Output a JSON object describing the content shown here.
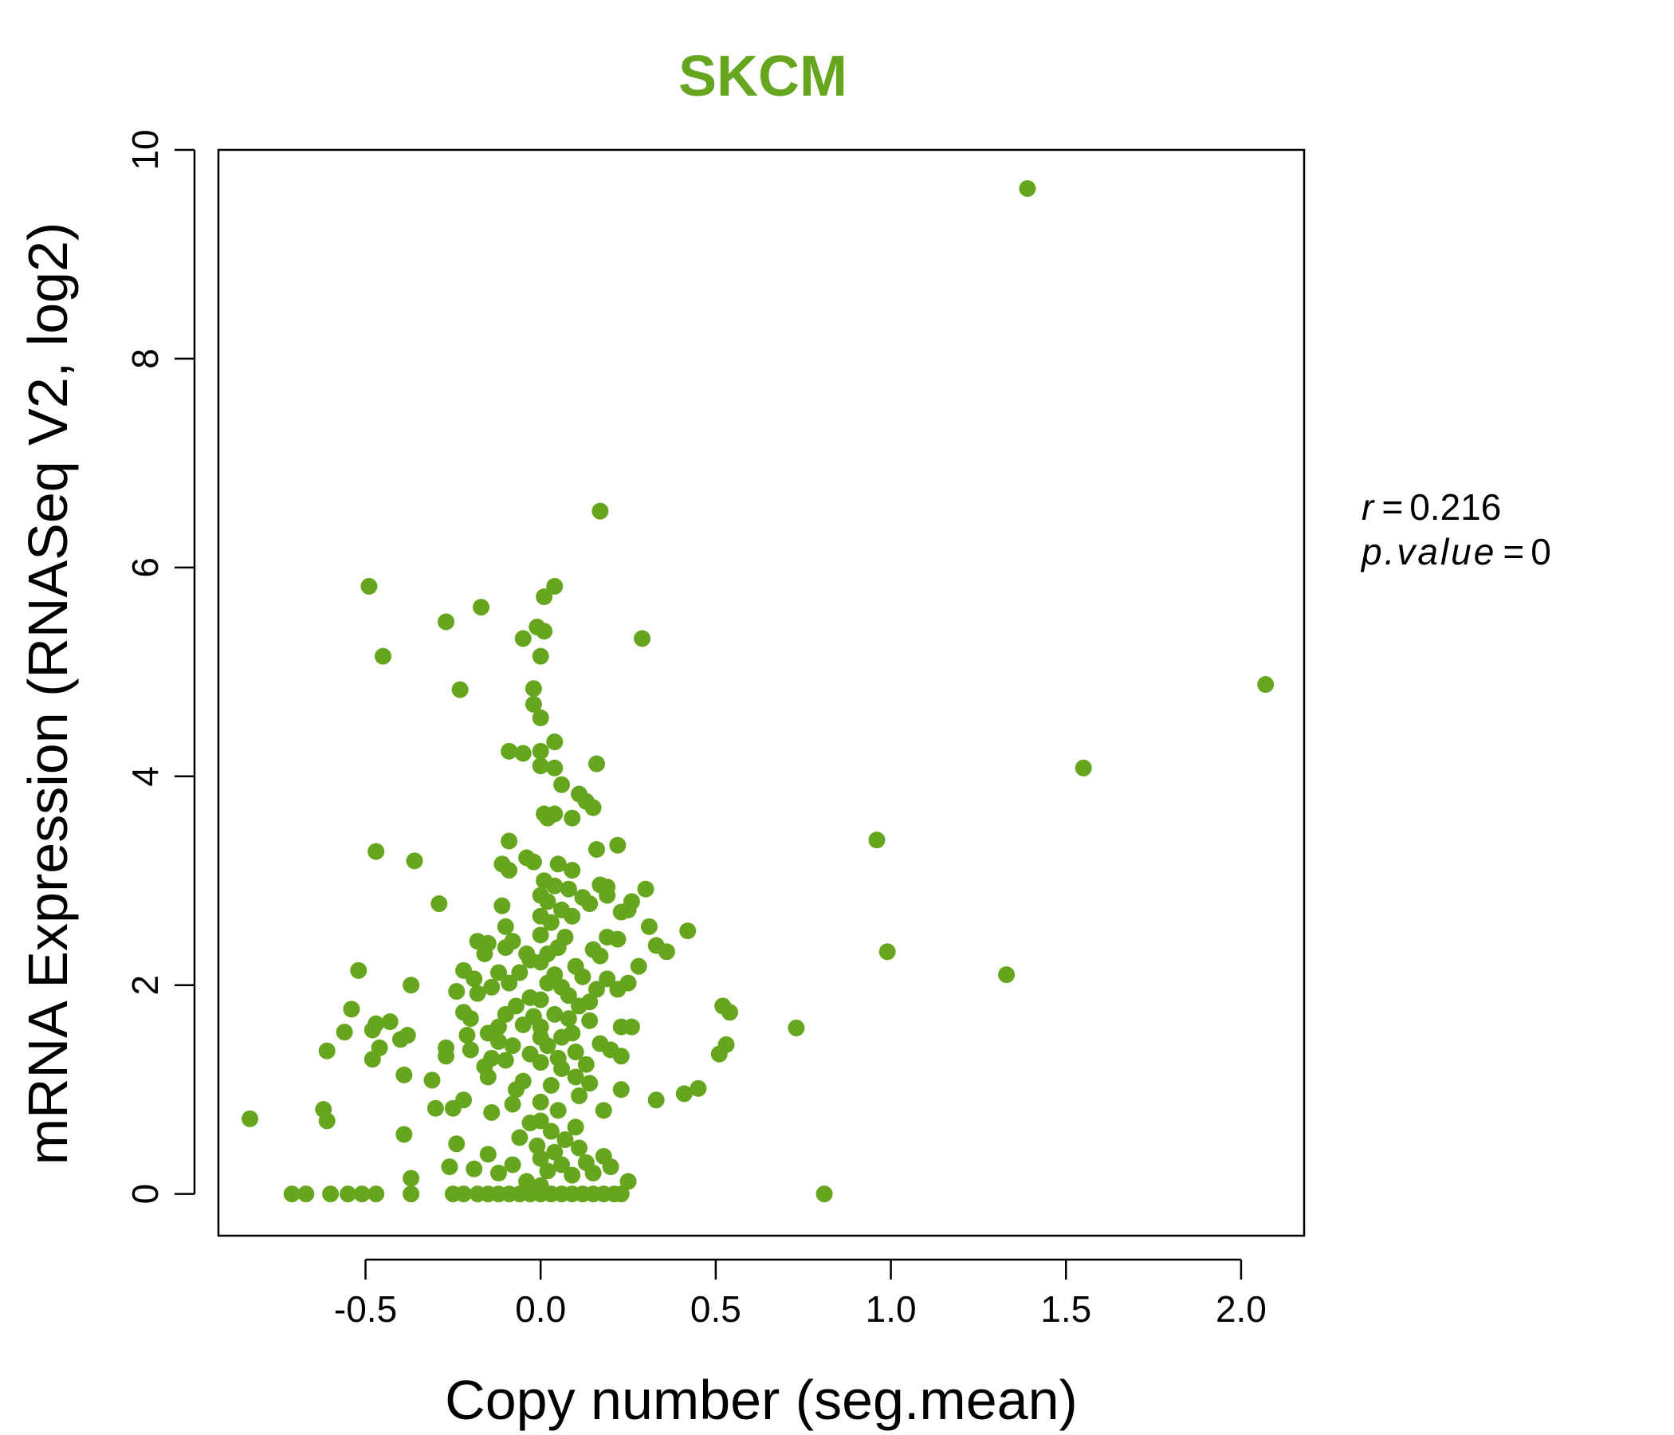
{
  "chart_data": {
    "type": "scatter",
    "title": "SKCM",
    "title_color": "#66a61e",
    "point_color": "#66a61e",
    "xlabel": "Copy number (seg.mean)",
    "ylabel": "mRNA Expression (RNASeq V2, log2)",
    "xlim": [
      -0.92,
      2.18
    ],
    "ylim": [
      -0.4,
      10
    ],
    "xticks": [
      -0.5,
      0.0,
      0.5,
      1.0,
      1.5,
      2.0
    ],
    "xtick_labels": [
      "-0.5",
      "0.0",
      "0.5",
      "1.0",
      "1.5",
      "2.0"
    ],
    "yticks": [
      0,
      2,
      4,
      6,
      8,
      10
    ],
    "ytick_labels": [
      "0",
      "2",
      "4",
      "6",
      "8",
      "10"
    ],
    "grid": false,
    "annotations": {
      "r_label": "r",
      "r_value": "0.216",
      "p_label": "p.value",
      "p_value": "0",
      "equals": "="
    },
    "points": [
      [
        1.39,
        9.63
      ],
      [
        2.07,
        4.88
      ],
      [
        1.55,
        4.08
      ],
      [
        0.96,
        3.39
      ],
      [
        0.99,
        2.32
      ],
      [
        1.33,
        2.1
      ],
      [
        0.81,
        0.0
      ],
      [
        0.73,
        1.59
      ],
      [
        0.17,
        6.54
      ],
      [
        0.29,
        5.32
      ],
      [
        0.04,
        5.82
      ],
      [
        0.01,
        5.72
      ],
      [
        -0.49,
        5.82
      ],
      [
        -0.17,
        5.62
      ],
      [
        -0.27,
        5.48
      ],
      [
        -0.45,
        5.15
      ],
      [
        -0.23,
        4.83
      ],
      [
        -0.05,
        5.32
      ],
      [
        0.0,
        5.15
      ],
      [
        -0.01,
        5.43
      ],
      [
        0.01,
        5.39
      ],
      [
        -0.02,
        4.84
      ],
      [
        -0.02,
        4.69
      ],
      [
        0.0,
        4.56
      ],
      [
        0.04,
        4.33
      ],
      [
        -0.05,
        4.22
      ],
      [
        -0.09,
        4.24
      ],
      [
        0.0,
        4.24
      ],
      [
        0.0,
        4.1
      ],
      [
        0.04,
        4.08
      ],
      [
        0.16,
        4.12
      ],
      [
        0.06,
        3.92
      ],
      [
        0.11,
        3.83
      ],
      [
        0.13,
        3.76
      ],
      [
        0.15,
        3.7
      ],
      [
        0.01,
        3.64
      ],
      [
        0.04,
        3.64
      ],
      [
        0.09,
        3.6
      ],
      [
        0.02,
        3.6
      ],
      [
        -0.09,
        3.38
      ],
      [
        0.16,
        3.3
      ],
      [
        0.22,
        3.34
      ],
      [
        -0.47,
        3.28
      ],
      [
        -0.36,
        3.19
      ],
      [
        -0.04,
        3.22
      ],
      [
        -0.02,
        3.18
      ],
      [
        -0.11,
        3.16
      ],
      [
        -0.09,
        3.1
      ],
      [
        0.05,
        3.16
      ],
      [
        0.09,
        3.1
      ],
      [
        0.01,
        3.0
      ],
      [
        0.04,
        2.95
      ],
      [
        0.17,
        2.96
      ],
      [
        0.19,
        2.94
      ],
      [
        0.3,
        2.92
      ],
      [
        0.08,
        2.92
      ],
      [
        0.12,
        2.84
      ],
      [
        0.19,
        2.86
      ],
      [
        0.26,
        2.8
      ],
      [
        -0.29,
        2.78
      ],
      [
        -0.11,
        2.76
      ],
      [
        0.0,
        2.86
      ],
      [
        0.02,
        2.8
      ],
      [
        0.06,
        2.72
      ],
      [
        0.14,
        2.78
      ],
      [
        0.23,
        2.7
      ],
      [
        0.25,
        2.72
      ],
      [
        0.0,
        2.66
      ],
      [
        0.09,
        2.66
      ],
      [
        0.03,
        2.6
      ],
      [
        -0.1,
        2.56
      ],
      [
        0.31,
        2.56
      ],
      [
        0.42,
        2.52
      ],
      [
        0.0,
        2.48
      ],
      [
        0.07,
        2.46
      ],
      [
        0.19,
        2.46
      ],
      [
        0.22,
        2.44
      ],
      [
        -0.08,
        2.42
      ],
      [
        -0.18,
        2.42
      ],
      [
        -0.15,
        2.4
      ],
      [
        0.33,
        2.38
      ],
      [
        0.36,
        2.32
      ],
      [
        -0.1,
        2.36
      ],
      [
        0.05,
        2.36
      ],
      [
        0.15,
        2.34
      ],
      [
        0.02,
        2.3
      ],
      [
        -0.04,
        2.3
      ],
      [
        -0.16,
        2.3
      ],
      [
        0.17,
        2.28
      ],
      [
        -0.03,
        2.24
      ],
      [
        0.0,
        2.22
      ],
      [
        0.28,
        2.18
      ],
      [
        0.1,
        2.18
      ],
      [
        -0.52,
        2.14
      ],
      [
        -0.22,
        2.14
      ],
      [
        -0.12,
        2.12
      ],
      [
        -0.06,
        2.12
      ],
      [
        0.04,
        2.1
      ],
      [
        0.12,
        2.08
      ],
      [
        0.19,
        2.06
      ],
      [
        -0.19,
        2.06
      ],
      [
        -0.09,
        2.02
      ],
      [
        0.02,
        2.02
      ],
      [
        0.25,
        2.02
      ],
      [
        -0.37,
        2.0
      ],
      [
        -0.14,
        1.98
      ],
      [
        0.06,
        1.98
      ],
      [
        0.16,
        1.96
      ],
      [
        0.22,
        1.96
      ],
      [
        -0.24,
        1.94
      ],
      [
        -0.18,
        1.92
      ],
      [
        0.08,
        1.9
      ],
      [
        -0.03,
        1.88
      ],
      [
        0.0,
        1.86
      ],
      [
        0.14,
        1.84
      ],
      [
        -0.07,
        1.8
      ],
      [
        0.11,
        1.8
      ],
      [
        0.52,
        1.8
      ],
      [
        0.54,
        1.74
      ],
      [
        -0.54,
        1.77
      ],
      [
        -0.22,
        1.74
      ],
      [
        -0.1,
        1.72
      ],
      [
        0.04,
        1.72
      ],
      [
        -0.02,
        1.7
      ],
      [
        0.08,
        1.68
      ],
      [
        -0.2,
        1.68
      ],
      [
        0.14,
        1.66
      ],
      [
        -0.43,
        1.65
      ],
      [
        -0.47,
        1.63
      ],
      [
        -0.05,
        1.62
      ],
      [
        -0.12,
        1.6
      ],
      [
        0.0,
        1.6
      ],
      [
        0.23,
        1.6
      ],
      [
        0.26,
        1.6
      ],
      [
        -0.48,
        1.57
      ],
      [
        -0.56,
        1.55
      ],
      [
        -0.15,
        1.54
      ],
      [
        0.09,
        1.54
      ],
      [
        -0.21,
        1.52
      ],
      [
        -0.38,
        1.52
      ],
      [
        0.0,
        1.5
      ],
      [
        0.06,
        1.5
      ],
      [
        -0.4,
        1.48
      ],
      [
        -0.12,
        1.46
      ],
      [
        0.17,
        1.44
      ],
      [
        0.53,
        1.43
      ],
      [
        -0.08,
        1.42
      ],
      [
        0.02,
        1.42
      ],
      [
        -0.46,
        1.4
      ],
      [
        -0.27,
        1.4
      ],
      [
        -0.2,
        1.38
      ],
      [
        0.2,
        1.38
      ],
      [
        0.1,
        1.36
      ],
      [
        -0.61,
        1.37
      ],
      [
        -0.03,
        1.34
      ],
      [
        0.51,
        1.34
      ],
      [
        -0.27,
        1.32
      ],
      [
        0.23,
        1.32
      ],
      [
        -0.14,
        1.3
      ],
      [
        0.05,
        1.3
      ],
      [
        -0.48,
        1.29
      ],
      [
        -0.1,
        1.28
      ],
      [
        0.0,
        1.26
      ],
      [
        0.13,
        1.24
      ],
      [
        -0.16,
        1.22
      ],
      [
        0.06,
        1.2
      ],
      [
        -0.39,
        1.14
      ],
      [
        -0.15,
        1.12
      ],
      [
        0.1,
        1.12
      ],
      [
        -0.31,
        1.09
      ],
      [
        -0.05,
        1.08
      ],
      [
        0.14,
        1.06
      ],
      [
        0.03,
        1.04
      ],
      [
        0.45,
        1.01
      ],
      [
        0.23,
        1.0
      ],
      [
        -0.07,
        1.0
      ],
      [
        0.41,
        0.96
      ],
      [
        0.11,
        0.94
      ],
      [
        0.33,
        0.9
      ],
      [
        -0.22,
        0.9
      ],
      [
        0.0,
        0.88
      ],
      [
        -0.08,
        0.86
      ],
      [
        -0.3,
        0.82
      ],
      [
        -0.25,
        0.82
      ],
      [
        0.18,
        0.8
      ],
      [
        -0.62,
        0.81
      ],
      [
        0.05,
        0.8
      ],
      [
        -0.14,
        0.78
      ],
      [
        -0.83,
        0.72
      ],
      [
        -0.61,
        0.7
      ],
      [
        0.0,
        0.7
      ],
      [
        -0.03,
        0.68
      ],
      [
        0.1,
        0.64
      ],
      [
        0.03,
        0.6
      ],
      [
        -0.39,
        0.57
      ],
      [
        -0.06,
        0.54
      ],
      [
        0.07,
        0.52
      ],
      [
        -0.24,
        0.48
      ],
      [
        -0.01,
        0.46
      ],
      [
        0.11,
        0.44
      ],
      [
        0.04,
        0.4
      ],
      [
        -0.15,
        0.38
      ],
      [
        0.18,
        0.36
      ],
      [
        0.0,
        0.34
      ],
      [
        0.13,
        0.3
      ],
      [
        -0.08,
        0.28
      ],
      [
        0.06,
        0.28
      ],
      [
        -0.26,
        0.26
      ],
      [
        0.2,
        0.26
      ],
      [
        -0.19,
        0.24
      ],
      [
        0.02,
        0.22
      ],
      [
        0.15,
        0.2
      ],
      [
        -0.12,
        0.2
      ],
      [
        0.09,
        0.18
      ],
      [
        -0.37,
        0.15
      ],
      [
        0.25,
        0.12
      ],
      [
        -0.04,
        0.12
      ],
      [
        0.0,
        0.08
      ],
      [
        -0.71,
        0.0
      ],
      [
        -0.67,
        0.0
      ],
      [
        -0.6,
        0.0
      ],
      [
        -0.55,
        0.0
      ],
      [
        -0.51,
        0.0
      ],
      [
        -0.47,
        0.0
      ],
      [
        -0.37,
        0.0
      ],
      [
        -0.25,
        0.0
      ],
      [
        -0.22,
        0.0
      ],
      [
        -0.18,
        0.0
      ],
      [
        -0.15,
        0.0
      ],
      [
        -0.12,
        0.0
      ],
      [
        -0.09,
        0.0
      ],
      [
        -0.06,
        0.0
      ],
      [
        -0.03,
        0.0
      ],
      [
        0.0,
        0.0
      ],
      [
        0.03,
        0.0
      ],
      [
        0.06,
        0.0
      ],
      [
        0.09,
        0.0
      ],
      [
        0.12,
        0.0
      ],
      [
        0.15,
        0.0
      ],
      [
        0.18,
        0.0
      ],
      [
        0.21,
        0.0
      ],
      [
        0.23,
        0.0
      ]
    ]
  }
}
